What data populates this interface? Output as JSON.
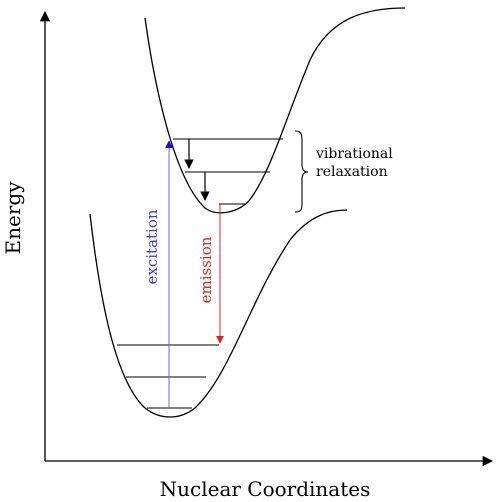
{
  "axes": {
    "y_label": "Energy",
    "x_label": "Nuclear Coordinates"
  },
  "transitions": {
    "excitation_label": "excitation",
    "emission_label": "emission",
    "relaxation_label_line1": "vibrational",
    "relaxation_label_line2": "relaxation"
  },
  "colors": {
    "excitation": "#3a3af0",
    "emission": "#e02020",
    "curves": "#000000"
  }
}
